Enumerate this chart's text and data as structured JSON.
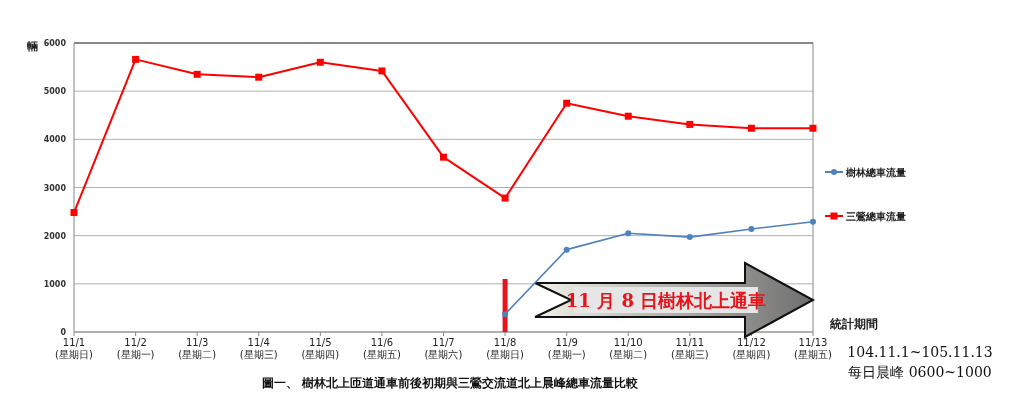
{
  "chart_data": {
    "type": "line",
    "ylabel": "輛",
    "xlabel": "統計期間",
    "categories": [
      "11/1(星期日)",
      "11/2(星期一)",
      "11/3(星期二)",
      "11/4(星期三)",
      "11/5(星期四)",
      "11/6(星期五)",
      "11/7(星期六)",
      "11/8(星期日)",
      "11/9(星期一)",
      "11/10(星期二)",
      "11/11(星期三)",
      "11/12(星期四)",
      "11/13(星期五)"
    ],
    "series": [
      {
        "name": "樹林總車流量",
        "color": "#4f81bd",
        "marker": "circle",
        "values": [
          null,
          null,
          null,
          null,
          null,
          null,
          null,
          370,
          1710,
          2050,
          1970,
          2140,
          2290
        ]
      },
      {
        "name": "三鶯總車流量",
        "color": "#ff0000",
        "marker": "square",
        "values": [
          2480,
          5660,
          5350,
          5290,
          5600,
          5420,
          3630,
          2780,
          4750,
          4480,
          4310,
          4230,
          4230
        ]
      }
    ],
    "ylim": [
      0,
      6000
    ],
    "yticks": [
      0,
      1000,
      2000,
      3000,
      4000,
      5000,
      6000
    ],
    "grid": "y",
    "legend": "right",
    "ref_lines": [
      {
        "axis": "x",
        "value": "11/8(星期日)",
        "color": "#e8141c"
      }
    ],
    "annotations": [
      "11 月 8 日樹林北上通車",
      "104.11.1~105.11.13",
      "每日晨峰 0600~1000",
      "圖一、 樹林北上匝道通車前後初期與三鶯交流道北上晨峰總車流量比較"
    ]
  }
}
